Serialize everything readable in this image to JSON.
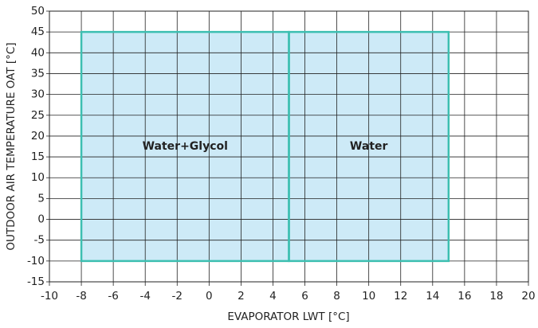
{
  "chart_data": {
    "type": "envelope",
    "x_label": "EVAPORATOR LWT [°C]",
    "y_label": "OUTDOOR AIR TEMPERATURE OAT [°C]",
    "xlim": [
      -10,
      20
    ],
    "ylim": [
      -15,
      50
    ],
    "xticks": [
      -10,
      -8,
      -6,
      -4,
      -2,
      0,
      2,
      4,
      6,
      8,
      10,
      12,
      14,
      16,
      18,
      20
    ],
    "yticks": [
      -15,
      -10,
      -5,
      0,
      5,
      10,
      15,
      20,
      25,
      30,
      35,
      40,
      45,
      50
    ],
    "grid": true,
    "fill_color": "#cdeaf7",
    "edge_color": "#3dbfb1",
    "series": [
      {
        "name": "Water+Glycol",
        "x": [
          -8,
          5,
          5,
          -8
        ],
        "y": [
          -10,
          -10,
          45,
          45
        ]
      },
      {
        "name": "Water",
        "x": [
          5,
          15,
          15,
          5
        ],
        "y": [
          -10,
          -10,
          45,
          45
        ]
      }
    ]
  }
}
